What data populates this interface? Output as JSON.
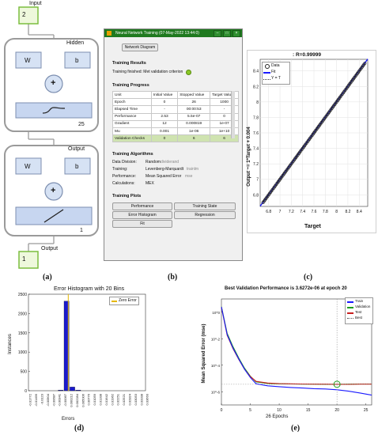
{
  "panel_labels": [
    "(a)",
    "(b)",
    "(c)",
    "(d)",
    "(e)"
  ],
  "nn_diagram": {
    "input_label": "Input",
    "input_size": "2",
    "hidden_label": "Hidden",
    "hidden_size": "25",
    "output_layer_label": "Output",
    "output_layer_size": "1",
    "output_label": "Output",
    "output_size": "1",
    "weight_symbol": "W",
    "bias_symbol": "b",
    "sum_symbol": "+"
  },
  "training_window": {
    "title": "Neural Network Training (07-May-2022 13:44:0)",
    "network_diagram_button": "Network Diagram",
    "results_heading": "Training Results",
    "results_text": "Training finished: Met validation criterion",
    "progress_heading": "Training Progress",
    "progress_columns": [
      "Unit",
      "Initial Value",
      "Stopped Value",
      "Target Value"
    ],
    "progress_rows": [
      [
        "Epoch",
        "0",
        "26",
        "1000"
      ],
      [
        "Elapsed Time",
        "-",
        "00:00:53",
        "-"
      ],
      [
        "Performance",
        "2.53",
        "5.5e-07",
        "0"
      ],
      [
        "Gradient",
        "12",
        "0.000819",
        "1e-07"
      ],
      [
        "Mu",
        "0.001",
        "1e-06",
        "1e+10"
      ],
      [
        "Validation Checks",
        "0",
        "6",
        "6"
      ]
    ],
    "algorithms_heading": "Training Algorithms",
    "algorithms": [
      {
        "label": "Data Division:",
        "value": "Random",
        "code": "dividerand"
      },
      {
        "label": "Training:",
        "value": "Levenberg-Marquardt",
        "code": "trainlm"
      },
      {
        "label": "Performance:",
        "value": "Mean Squared Error",
        "code": "mse"
      },
      {
        "label": "Calculations:",
        "value": "MEX",
        "code": ""
      }
    ],
    "plots_heading": "Training Plots",
    "plot_buttons": [
      "Performance",
      "Training State",
      "Error Histogram",
      "Regression",
      "Fit"
    ]
  },
  "charts": {
    "regression": {
      "title": ": R=0.99999",
      "xlabel": "Target",
      "ylabel": "Output ~= 1*Target + 0.004",
      "xticks": [
        "6.8",
        "7",
        "7.2",
        "7.4",
        "7.6",
        "7.8",
        "8",
        "8.2",
        "8.4"
      ],
      "yticks": [
        "6.8",
        "7",
        "7.2",
        "7.4",
        "7.6",
        "7.8",
        "8",
        "8.2",
        "8.4"
      ],
      "legend": [
        "Data",
        "Fit",
        "Y = T"
      ]
    },
    "histogram": {
      "title": "Error Histogram with 20 Bins",
      "xlabel": "Errors",
      "ylabel": "Instances",
      "yticks": [
        "0",
        "500",
        "1000",
        "1500",
        "2000",
        "2500"
      ],
      "xticks": [
        "-0.01772",
        "-0.01499",
        "-0.0123",
        "-0.00904",
        "-0.00687",
        "-0.00341",
        "-0.00067",
        "0.000212",
        "0.002284",
        "0.005006",
        "0.00776",
        "0.01059",
        "0.01338",
        "0.01642",
        "0.01962",
        "0.02251",
        "0.02521",
        "0.02824",
        "0.03053",
        "0.03338",
        "0.03660"
      ],
      "legend": [
        "Zero Error"
      ]
    },
    "performance": {
      "title": "Best Validation Performance is 3.6272e-06 at epoch 20",
      "xlabel": "26 Epochs",
      "ylabel": "Mean Squared Error  (mse)",
      "xticks": [
        "0",
        "5",
        "10",
        "15",
        "20",
        "25"
      ],
      "yticks": [
        "10^0",
        "10^-2",
        "10^-4",
        "10^-6"
      ],
      "legend": [
        "Train",
        "Validation",
        "Test",
        "Best"
      ]
    }
  },
  "chart_data": [
    {
      "type": "scatter",
      "title": ": R=0.99999",
      "xlabel": "Target",
      "ylabel": "Output ~= 1*Target + 0.004",
      "xlim": [
        6.65,
        8.55
      ],
      "ylim": [
        6.65,
        8.55
      ],
      "series": [
        {
          "name": "Data",
          "x": [
            6.7,
            6.8,
            6.9,
            7.0,
            7.1,
            7.2,
            7.3,
            7.4,
            7.5,
            7.6,
            7.7,
            7.8,
            7.9,
            8.0,
            8.1,
            8.2,
            8.3,
            8.4,
            8.5
          ],
          "y": [
            6.7,
            6.8,
            6.9,
            7.0,
            7.1,
            7.2,
            7.3,
            7.4,
            7.5,
            7.6,
            7.7,
            7.8,
            7.9,
            8.0,
            8.1,
            8.2,
            8.3,
            8.4,
            8.5
          ]
        },
        {
          "name": "Fit",
          "x": [
            6.65,
            8.55
          ],
          "y": [
            6.654,
            8.554
          ]
        },
        {
          "name": "Y = T",
          "x": [
            6.65,
            8.55
          ],
          "y": [
            6.65,
            8.55
          ]
        }
      ]
    },
    {
      "type": "bar",
      "title": "Error Histogram with 20 Bins",
      "xlabel": "Errors",
      "ylabel": "Instances",
      "ylim": [
        0,
        2500
      ],
      "categories": [
        "-0.01772",
        "-0.01499",
        "-0.0123",
        "-0.00904",
        "-0.00687",
        "-0.00341",
        "-0.00067",
        "0.000212",
        "0.002284",
        "0.005006",
        "0.00776",
        "0.01059",
        "0.01338",
        "0.01642",
        "0.01962",
        "0.02251",
        "0.02521",
        "0.02824",
        "0.03053",
        "0.03338"
      ],
      "values": [
        0,
        0,
        0,
        0,
        0,
        2,
        2320,
        95,
        5,
        0,
        0,
        0,
        0,
        0,
        0,
        0,
        0,
        0,
        0,
        0
      ],
      "zero_error": 0
    },
    {
      "type": "line",
      "title": "Best Validation Performance is 3.6272e-06 at epoch 20",
      "xlabel": "26 Epochs",
      "ylabel": "Mean Squared Error  (mse)",
      "y_scale": "log",
      "xlim": [
        0,
        26
      ],
      "ylim": [
        1e-07,
        10
      ],
      "x": [
        0,
        1,
        2,
        3,
        4,
        5,
        6,
        8,
        10,
        12,
        14,
        16,
        18,
        20,
        22,
        24,
        26
      ],
      "series": [
        {
          "name": "Train",
          "values": [
            2.5,
            0.02,
            0.002,
            0.0003,
            5e-05,
            1.2e-05,
            4e-06,
            2.8e-06,
            2.4e-06,
            2.1e-06,
            1.9e-06,
            1.7e-06,
            1.6e-06,
            1.4e-06,
            1.1e-06,
            8e-07,
            5.5e-07
          ]
        },
        {
          "name": "Validation",
          "values": [
            2.6,
            0.025,
            0.0025,
            0.00035,
            6e-05,
            1.5e-05,
            5.5e-06,
            4.2e-06,
            3.9e-06,
            3.8e-06,
            3.7e-06,
            3.7e-06,
            3.6e-06,
            3.6e-06,
            3.7e-06,
            3.8e-06,
            3.8e-06
          ]
        },
        {
          "name": "Test",
          "values": [
            2.4,
            0.018,
            0.0018,
            0.00028,
            5e-05,
            1.4e-05,
            6e-06,
            4.5e-06,
            4.1e-06,
            3.9e-06,
            3.8e-06,
            3.7e-06,
            3.7e-06,
            3.6e-06,
            3.6e-06,
            3.7e-06,
            3.7e-06
          ]
        }
      ],
      "best": {
        "epoch": 20,
        "value": 3.6272e-06
      }
    }
  ],
  "colors": {
    "train": "#1a1aff",
    "validation": "#1d9e1d",
    "test": "#c81e1e",
    "best": "#7a7a7a",
    "titlebar": "#1f7a1f",
    "hist_bar": "#1a1ad0",
    "zero_line": "#e6b800",
    "block": "#c7d6f0"
  }
}
